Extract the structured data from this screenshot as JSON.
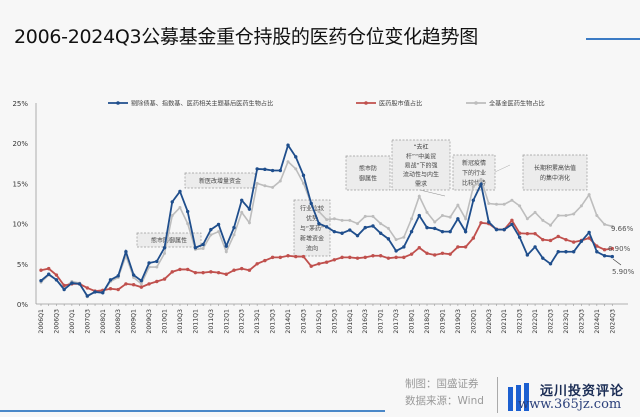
{
  "title": "2006-2024Q3公募基金重仓持股的医药仓位变化趋势图",
  "footer": {
    "chart_by": "制图：国盛证券",
    "source": "数据来源：Wind",
    "logo": "远川投资评论",
    "watermark": "www.365jz.com"
  },
  "colors": {
    "blue": "#1f4e8c",
    "red": "#c0504d",
    "grey": "#bdbdbd",
    "accent": "#3b7bc4"
  },
  "chart_data": {
    "type": "line",
    "title": "2006-2024Q3公募基金重仓持股的医药仓位变化趋势图",
    "xlabel": "",
    "ylabel": "",
    "ylim": [
      0,
      25
    ],
    "yticks": [
      "0%",
      "5%",
      "10%",
      "15%",
      "20%",
      "25%"
    ],
    "legend_position": "top",
    "x": [
      "2006Q1",
      "2006Q2",
      "2006Q3",
      "2006Q4",
      "2007Q1",
      "2007Q2",
      "2007Q3",
      "2007Q4",
      "2008Q1",
      "2008Q2",
      "2008Q3",
      "2008Q4",
      "2009Q1",
      "2009Q2",
      "2009Q3",
      "2009Q4",
      "2010Q1",
      "2010Q2",
      "2010Q3",
      "2010Q4",
      "2011Q1",
      "2011Q2",
      "2011Q3",
      "2011Q4",
      "2012Q1",
      "2012Q2",
      "2012Q3",
      "2012Q4",
      "2013Q1",
      "2013Q2",
      "2013Q3",
      "2013Q4",
      "2014Q1",
      "2014Q2",
      "2014Q3",
      "2014Q4",
      "2015Q1",
      "2015Q2",
      "2015Q3",
      "2015Q4",
      "2016Q1",
      "2016Q2",
      "2016Q3",
      "2016Q4",
      "2017Q1",
      "2017Q2",
      "2017Q3",
      "2017Q4",
      "2018Q1",
      "2018Q2",
      "2018Q3",
      "2018Q4",
      "2019Q1",
      "2019Q2",
      "2019Q3",
      "2019Q4",
      "2020Q1",
      "2020Q2",
      "2020Q3",
      "2020Q4",
      "2021Q1",
      "2021Q2",
      "2021Q3",
      "2021Q4",
      "2022Q1",
      "2022Q2",
      "2022Q3",
      "2022Q4",
      "2023Q1",
      "2023Q2",
      "2023Q3",
      "2023Q4",
      "2024Q1",
      "2024Q2",
      "2024Q3"
    ],
    "series": [
      {
        "name": "剔除债基、指数基、医药相关主题基后医药生物占比",
        "color": "#1f4e8c",
        "values": [
          2.9,
          3.7,
          3.0,
          1.8,
          2.6,
          2.5,
          1.0,
          1.5,
          1.4,
          3.0,
          3.5,
          6.5,
          3.6,
          2.9,
          5.1,
          5.3,
          7.0,
          12.7,
          14.0,
          11.5,
          7.0,
          7.4,
          9.25,
          9.9,
          7.2,
          9.5,
          12.9,
          11.8,
          16.8,
          16.75,
          16.6,
          16.6,
          19.75,
          18.3,
          16.0,
          12.5,
          10.0,
          9.6,
          9.0,
          8.8,
          9.2,
          8.5,
          9.5,
          9.7,
          8.8,
          8.1,
          6.6,
          7.1,
          9.0,
          11.0,
          9.5,
          9.4,
          9.0,
          9.0,
          10.6,
          9.0,
          12.9,
          14.9,
          10.2,
          9.25,
          9.25,
          9.9,
          8.3,
          6.1,
          7.1,
          5.7,
          5.0,
          6.5,
          6.5,
          6.5,
          7.8,
          8.9,
          6.5,
          6.0,
          5.9
        ]
      },
      {
        "name": "医药股市值占比",
        "color": "#c0504d",
        "values": [
          4.2,
          4.4,
          3.6,
          2.3,
          2.5,
          2.5,
          2.0,
          1.6,
          1.7,
          1.9,
          1.8,
          2.5,
          2.4,
          2.1,
          2.5,
          2.8,
          3.1,
          4.0,
          4.3,
          4.3,
          3.9,
          3.9,
          4.0,
          3.9,
          3.7,
          4.2,
          4.4,
          4.2,
          5.0,
          5.4,
          5.8,
          5.8,
          6.0,
          5.9,
          5.9,
          4.7,
          5.0,
          5.2,
          5.5,
          5.8,
          5.8,
          5.7,
          5.8,
          6.0,
          6.0,
          5.7,
          5.8,
          5.8,
          6.2,
          7.0,
          6.3,
          6.1,
          6.3,
          6.2,
          7.1,
          7.1,
          8.2,
          10.1,
          10.0,
          9.3,
          9.25,
          10.4,
          8.8,
          8.75,
          8.75,
          8.0,
          7.9,
          8.4,
          8.0,
          7.7,
          7.9,
          8.2,
          7.2,
          6.75,
          6.9
        ]
      },
      {
        "name": "全基金医药生物占比",
        "color": "#bdbdbd",
        "values": [
          2.7,
          3.6,
          3.0,
          2.0,
          2.8,
          2.6,
          0.9,
          1.6,
          1.4,
          2.8,
          3.3,
          6.0,
          3.3,
          2.5,
          4.6,
          4.6,
          6.3,
          11.0,
          12.0,
          10.0,
          6.8,
          6.9,
          8.6,
          9.0,
          6.5,
          8.6,
          11.4,
          10.1,
          15.0,
          14.7,
          14.5,
          15.3,
          17.7,
          16.8,
          15.0,
          12.5,
          11.5,
          10.5,
          10.6,
          10.4,
          10.4,
          10.0,
          10.9,
          10.9,
          10.0,
          9.4,
          8.0,
          8.3,
          10.6,
          13.4,
          11.4,
          10.2,
          11.0,
          10.8,
          12.3,
          10.6,
          14.6,
          15.5,
          12.5,
          12.4,
          12.4,
          12.9,
          12.2,
          10.6,
          11.4,
          10.4,
          9.8,
          11.0,
          11.0,
          11.2,
          12.2,
          13.6,
          11.0,
          9.9,
          9.66
        ]
      }
    ],
    "end_labels": [
      "9.66%",
      "6.90%",
      "5.90%"
    ],
    "annotations": [
      {
        "text": "熊市防御属性",
        "at": "2010Q2"
      },
      {
        "text": "新医改增量资金",
        "at": "2012Q1"
      },
      {
        "text": "行业比较优势与“茅药”新增资金流向",
        "at": "2015Q1"
      },
      {
        "text": "熊市防御属性",
        "at": "2016Q1"
      },
      {
        "text": "“去杠杆”“中美贸易战”下的强流动性与内生需求",
        "at": "2018Q3"
      },
      {
        "text": "新冠疫情下的行业比较优势",
        "at": "2020Q2"
      },
      {
        "text": "长期积累高估值的集中消化",
        "at": "2023Q2"
      }
    ]
  }
}
